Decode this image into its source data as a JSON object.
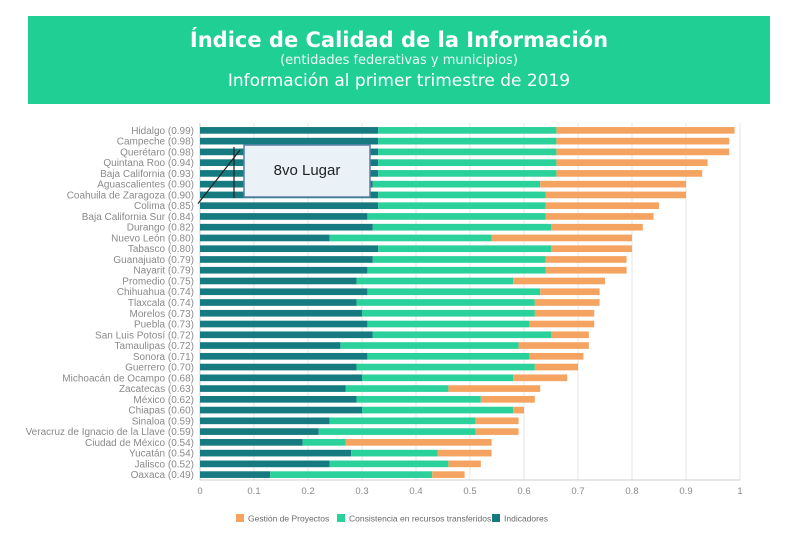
{
  "header": {
    "title": "Índice de Calidad de la Información",
    "subtitle": "(entidades federativas y municipios)",
    "period": "Información al primer trimestre de 2019"
  },
  "callout": {
    "text": "8vo Lugar"
  },
  "colors": {
    "gestion": "#f4a460",
    "consistencia": "#2ad19a",
    "indicadores": "#167b80",
    "banner": "#1fcf93"
  },
  "chart_data": {
    "type": "bar",
    "orientation": "horizontal",
    "stacked": true,
    "xlim": [
      0,
      1
    ],
    "xticks": [
      "0",
      "0.1",
      "0.2",
      "0.3",
      "0.4",
      "0.5",
      "0.6",
      "0.7",
      "0.8",
      "0.9",
      "1"
    ],
    "grid": true,
    "legend_position": "bottom",
    "categories": [
      "Hidalgo (0.99)",
      "Campeche (0.98)",
      "Querétaro (0.98)",
      "Quintana Roo (0.94)",
      "Baja California (0.93)",
      "Aguascalientes (0.90)",
      "Coahuila de Zaragoza (0.90)",
      "Colima (0.85)",
      "Baja California Sur (0.84)",
      "Durango (0.82)",
      "Nuevo León (0.80)",
      "Tabasco (0.80)",
      "Guanajuato (0.79)",
      "Nayarit (0.79)",
      "Promedio (0.75)",
      "Chihuahua (0.74)",
      "Tlaxcala (0.74)",
      "Morelos (0.73)",
      "Puebla (0.73)",
      "San Luis Potosí (0.72)",
      "Tamaulipas (0.72)",
      "Sonora (0.71)",
      "Guerrero (0.70)",
      "Michoacán de Ocampo (0.68)",
      "Zacatecas (0.63)",
      "México (0.62)",
      "Chiapas (0.60)",
      "Sinaloa (0.59)",
      "Veracruz de Ignacio de la Llave (0.59)",
      "Ciudad de México (0.54)",
      "Yucatán (0.54)",
      "Jalisco (0.52)",
      "Oaxaca (0.49)"
    ],
    "series": [
      {
        "name": "Indicadores",
        "key": "indicadores",
        "values": [
          0.33,
          0.33,
          0.33,
          0.33,
          0.33,
          0.32,
          0.33,
          0.33,
          0.31,
          0.32,
          0.24,
          0.33,
          0.32,
          0.31,
          0.29,
          0.31,
          0.29,
          0.3,
          0.31,
          0.32,
          0.26,
          0.31,
          0.29,
          0.3,
          0.27,
          0.29,
          0.3,
          0.24,
          0.22,
          0.19,
          0.28,
          0.24,
          0.13
        ]
      },
      {
        "name": "Consistencia en recursos transferidos",
        "key": "consistencia",
        "values": [
          0.33,
          0.33,
          0.33,
          0.33,
          0.33,
          0.31,
          0.31,
          0.31,
          0.33,
          0.33,
          0.3,
          0.32,
          0.32,
          0.33,
          0.29,
          0.32,
          0.33,
          0.32,
          0.3,
          0.33,
          0.33,
          0.3,
          0.33,
          0.28,
          0.19,
          0.23,
          0.28,
          0.27,
          0.29,
          0.08,
          0.16,
          0.22,
          0.3
        ]
      },
      {
        "name": "Gestión de Proyectos",
        "key": "gestion",
        "values": [
          0.33,
          0.32,
          0.32,
          0.28,
          0.27,
          0.27,
          0.26,
          0.21,
          0.2,
          0.17,
          0.26,
          0.15,
          0.15,
          0.15,
          0.17,
          0.11,
          0.12,
          0.11,
          0.12,
          0.07,
          0.13,
          0.1,
          0.08,
          0.1,
          0.17,
          0.1,
          0.02,
          0.08,
          0.08,
          0.27,
          0.1,
          0.06,
          0.06
        ]
      }
    ],
    "legend": [
      "Gestión de Proyectos",
      "Consistencia en recursos transferidos",
      "Indicadores"
    ]
  }
}
